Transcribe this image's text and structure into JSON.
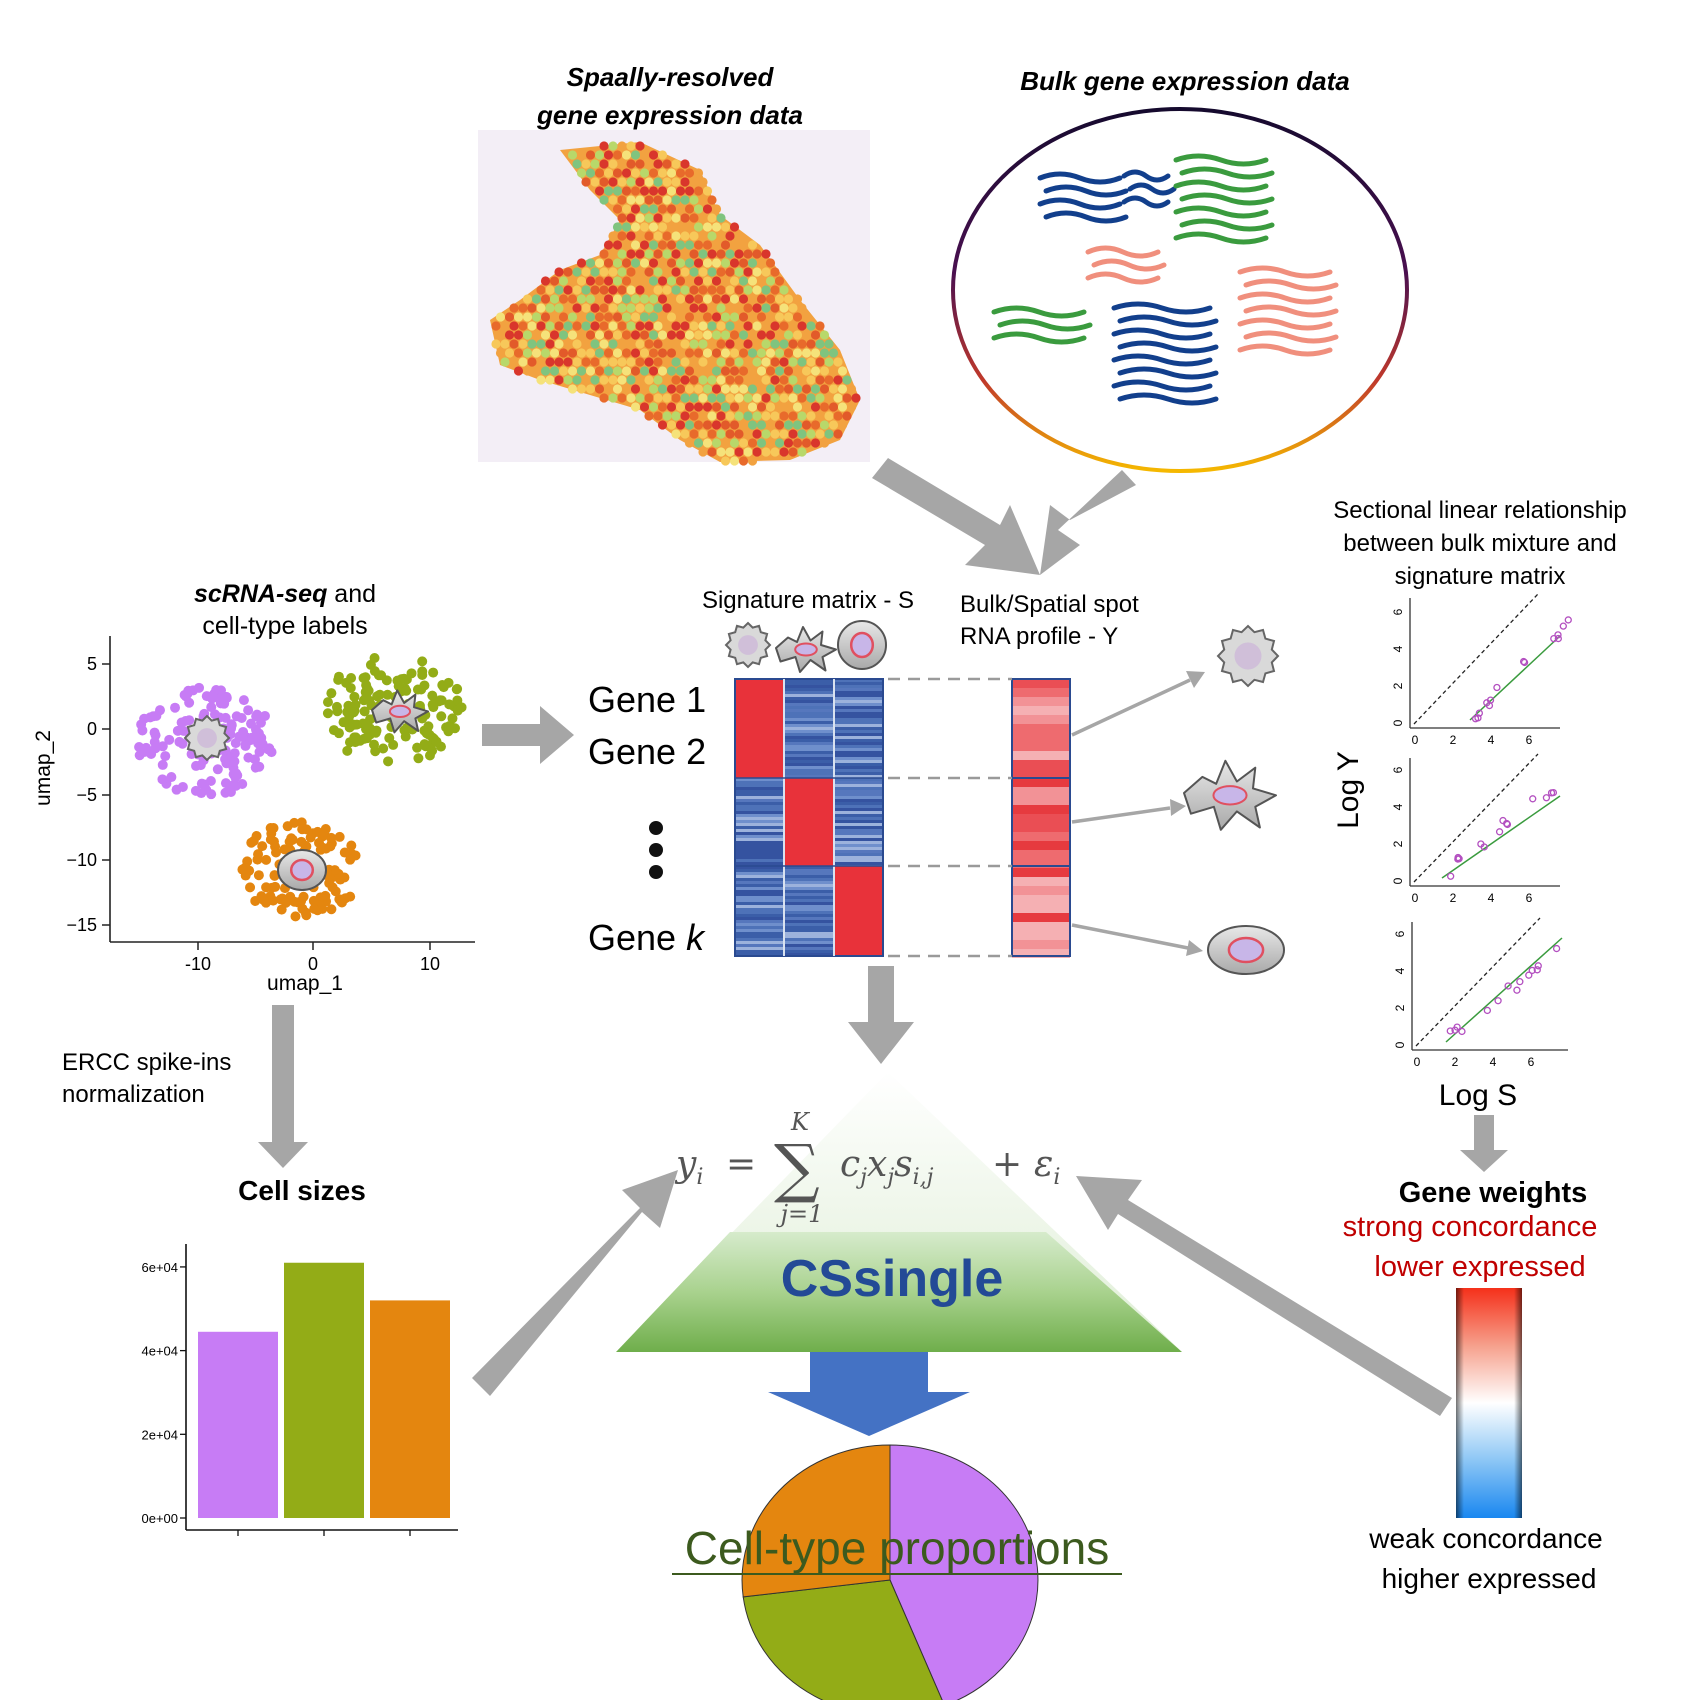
{
  "spatial": {
    "title_line1": "Spaally-resolved",
    "title_line2": "gene expression data"
  },
  "bulk": {
    "title": "Bulk gene expression data"
  },
  "scrna": {
    "title_bold": "scRNA-seq",
    "title_rest": " and",
    "title_line2": "cell-type labels",
    "xlabel": "umap_1",
    "ylabel": "umap_2",
    "xticks": [
      "-10",
      "0",
      "10"
    ],
    "yticks": [
      "5",
      "0",
      "−5",
      "−10",
      "−15"
    ]
  },
  "signature": {
    "title": "Signature matrix - S",
    "gene1": "Gene 1",
    "gene2": "Gene 2",
    "genek_prefix": "Gene ",
    "genek_k": "k"
  },
  "bulk_profile": {
    "line1": "Bulk/Spatial spot",
    "line2": "RNA profile - Y"
  },
  "sectional": {
    "line1": "Sectional linear relationship",
    "line2": "between bulk mixture and",
    "line3": "signature matrix",
    "xlabel": "Log S",
    "ylabel": "Log Y",
    "ticks": [
      "0",
      "2",
      "4",
      "6"
    ]
  },
  "ercc": {
    "line1": "ERCC spike-ins",
    "line2": "normalization"
  },
  "cell_sizes": {
    "title": "Cell sizes"
  },
  "formula": {
    "lhs": "y",
    "sub_i": "i",
    "eq": "=",
    "upper": "K",
    "lower": "j=1",
    "term": "c",
    "sub_j": "j",
    "x": "x",
    "s": "s",
    "sub_ij": "i,j",
    "plus": "+",
    "eps": "ε"
  },
  "method": {
    "name": "CSsingle"
  },
  "output": {
    "title": "Cell-type proportions"
  },
  "weights": {
    "title": "Gene weights",
    "top_line1": "strong concordance",
    "top_line2": "lower expressed",
    "bottom_line1": "weak concordance",
    "bottom_line2": "higher expressed"
  },
  "colors": {
    "purple": "#c77cf5",
    "olive": "#93ac17",
    "orange": "#e4860f",
    "arrow": "#a6a6a6",
    "navy": "#234a96"
  },
  "chart_data": [
    {
      "type": "bar",
      "categories": [
        "",
        "",
        ""
      ],
      "values": [
        44500,
        61000,
        52000
      ],
      "ylim": [
        0,
        65000
      ],
      "yticks": [
        "0e+00",
        "2e+04",
        "4e+04",
        "6e+04"
      ]
    },
    {
      "type": "pie",
      "values": [
        44,
        29,
        27
      ],
      "colors": [
        "#c77cf5",
        "#93ac17",
        "#e4860f"
      ]
    }
  ]
}
